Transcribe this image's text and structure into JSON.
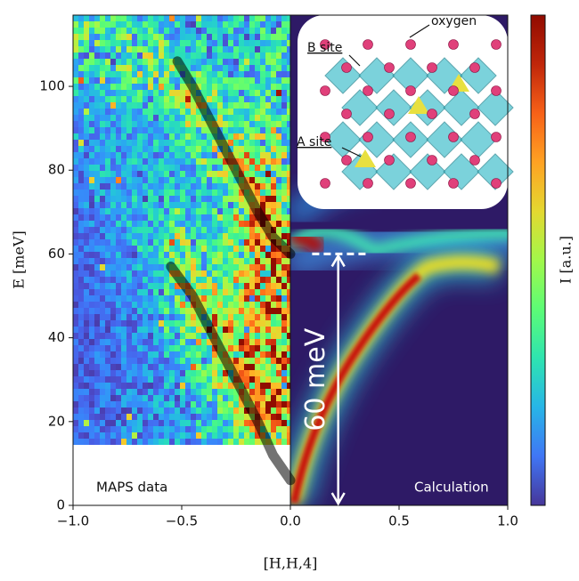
{
  "chart_data": {
    "type": "line",
    "xlabel": "[H,H,4]",
    "ylabel": "E [meV]",
    "colorbar_label": "I [a.u.]",
    "xlim": [
      -1.0,
      1.0
    ],
    "ylim": [
      0,
      117
    ],
    "xticks": [
      {
        "value": -1.0,
        "label": "−1.0"
      },
      {
        "value": -0.5,
        "label": "−0.5"
      },
      {
        "value": 0.0,
        "label": "0.0"
      },
      {
        "value": 0.5,
        "label": "0.5"
      },
      {
        "value": 1.0,
        "label": "1.0"
      }
    ],
    "yticks": [
      0,
      20,
      40,
      60,
      80,
      100
    ],
    "series": [
      {
        "color": "#000000",
        "x": [
          -0.52,
          -0.45,
          -0.38,
          -0.3,
          -0.22,
          -0.15,
          -0.08,
          0.0
        ],
        "values": [
          106,
          100,
          93,
          85,
          77,
          70,
          64,
          60
        ]
      },
      {
        "color": "#000000",
        "x": [
          -0.55,
          -0.45,
          -0.35,
          -0.25,
          -0.15,
          -0.08,
          0.0
        ],
        "values": [
          57,
          50,
          40,
          30,
          20,
          12,
          6
        ]
      }
    ],
    "panel_labels": [
      "MAPS data",
      "Calculation"
    ],
    "arrow": {
      "text": "60 meV",
      "x": 0.22,
      "from": 0,
      "to": 60
    },
    "inset_labels": [
      "oxygen",
      "B site",
      "A site"
    ]
  }
}
